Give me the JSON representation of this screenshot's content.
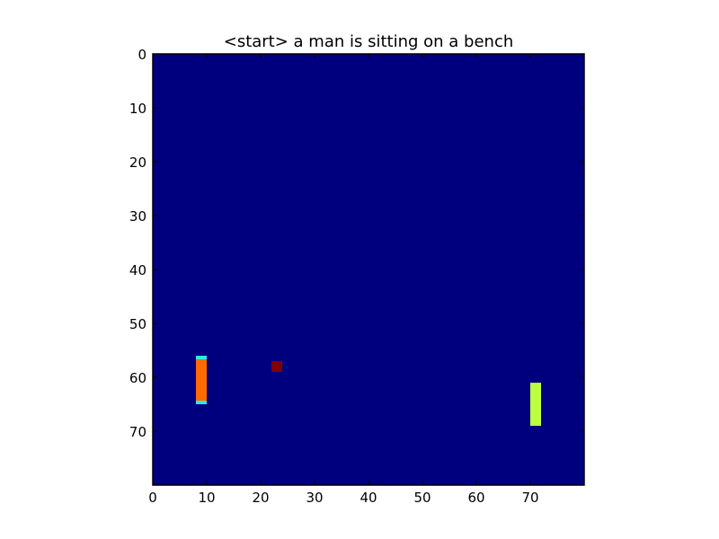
{
  "chart_data": {
    "type": "heatmap",
    "title": "<start> a man is sitting on a bench",
    "xlabel": "",
    "ylabel": "",
    "xlim": [
      0,
      80
    ],
    "ylim": [
      80,
      0
    ],
    "y_inverted": true,
    "x_ticks": [
      0,
      10,
      20,
      30,
      40,
      50,
      60,
      70
    ],
    "y_ticks": [
      0,
      10,
      20,
      30,
      40,
      50,
      60,
      70
    ],
    "grid": false,
    "colormap": "jet",
    "background_color": "#00007f",
    "frame_color": "#000000",
    "highlights": [
      {
        "x0": 8,
        "x1": 10,
        "y0": 56,
        "y1": 65,
        "color": "#ff6a00",
        "edge_color": "#33e5e5"
      },
      {
        "x0": 22,
        "x1": 24,
        "y0": 57,
        "y1": 59,
        "color": "#800000"
      },
      {
        "x0": 70,
        "x1": 72,
        "y0": 61,
        "y1": 69,
        "color": "#bbff40"
      }
    ]
  }
}
